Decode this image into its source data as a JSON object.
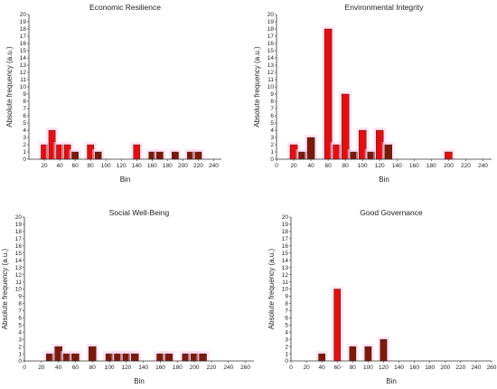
{
  "chart_data": [
    {
      "type": "bar",
      "title": "Economic Resilience",
      "xlabel": "Bin",
      "ylabel": "Absolute frequency (a.u.)",
      "xlim": [
        0,
        250
      ],
      "ylim": [
        0,
        20
      ],
      "xticks": [
        20,
        40,
        60,
        80,
        100,
        120,
        140,
        160,
        180,
        200,
        220,
        240
      ],
      "yticks": [
        0,
        1,
        2,
        3,
        4,
        5,
        6,
        7,
        8,
        9,
        10,
        11,
        12,
        13,
        14,
        15,
        16,
        17,
        18,
        19,
        20
      ],
      "bars": [
        {
          "x": 20,
          "value": 2,
          "color": "red"
        },
        {
          "x": 30,
          "value": 4,
          "color": "red"
        },
        {
          "x": 40,
          "value": 2,
          "color": "red"
        },
        {
          "x": 50,
          "value": 2,
          "color": "red"
        },
        {
          "x": 60,
          "value": 1,
          "color": "brown"
        },
        {
          "x": 80,
          "value": 2,
          "color": "red"
        },
        {
          "x": 90,
          "value": 1,
          "color": "brown"
        },
        {
          "x": 140,
          "value": 2,
          "color": "red"
        },
        {
          "x": 160,
          "value": 1,
          "color": "brown"
        },
        {
          "x": 170,
          "value": 1,
          "color": "brown"
        },
        {
          "x": 190,
          "value": 1,
          "color": "brown"
        },
        {
          "x": 210,
          "value": 1,
          "color": "brown"
        },
        {
          "x": 220,
          "value": 1,
          "color": "brown"
        }
      ]
    },
    {
      "type": "bar",
      "title": "Environmental Integrity",
      "xlabel": "Bin",
      "ylabel": "Absolute frequency (a.u.)",
      "xlim": [
        0,
        250
      ],
      "ylim": [
        0,
        20
      ],
      "xticks": [
        0,
        20,
        40,
        60,
        80,
        100,
        120,
        140,
        160,
        180,
        200,
        220,
        240
      ],
      "yticks": [
        0,
        1,
        2,
        3,
        4,
        5,
        6,
        7,
        8,
        9,
        10,
        11,
        12,
        13,
        14,
        15,
        16,
        17,
        18,
        19,
        20
      ],
      "bars": [
        {
          "x": 20,
          "value": 2,
          "color": "red"
        },
        {
          "x": 30,
          "value": 1,
          "color": "brown"
        },
        {
          "x": 40,
          "value": 3,
          "color": "brown"
        },
        {
          "x": 60,
          "value": 18,
          "color": "red"
        },
        {
          "x": 70,
          "value": 2,
          "color": "red"
        },
        {
          "x": 80,
          "value": 9,
          "color": "red"
        },
        {
          "x": 90,
          "value": 1,
          "color": "brown"
        },
        {
          "x": 100,
          "value": 4,
          "color": "red"
        },
        {
          "x": 110,
          "value": 1,
          "color": "brown"
        },
        {
          "x": 120,
          "value": 4,
          "color": "red"
        },
        {
          "x": 130,
          "value": 2,
          "color": "brown"
        },
        {
          "x": 200,
          "value": 1,
          "color": "red"
        }
      ]
    },
    {
      "type": "bar",
      "title": "Social Well-Being",
      "xlabel": "Bin",
      "ylabel": "Absolute frequency (a.u.)",
      "xlim": [
        0,
        270
      ],
      "ylim": [
        0,
        20
      ],
      "xticks": [
        0,
        20,
        40,
        60,
        80,
        100,
        120,
        140,
        160,
        180,
        200,
        220,
        240,
        260
      ],
      "yticks": [
        0,
        1,
        2,
        3,
        4,
        5,
        6,
        7,
        8,
        9,
        10,
        11,
        12,
        13,
        14,
        15,
        16,
        17,
        18,
        19,
        20
      ],
      "bars": [
        {
          "x": 30,
          "value": 1,
          "color": "brown"
        },
        {
          "x": 40,
          "value": 2,
          "color": "brown"
        },
        {
          "x": 50,
          "value": 1,
          "color": "brown"
        },
        {
          "x": 60,
          "value": 1,
          "color": "brown"
        },
        {
          "x": 80,
          "value": 2,
          "color": "brown"
        },
        {
          "x": 100,
          "value": 1,
          "color": "brown"
        },
        {
          "x": 110,
          "value": 1,
          "color": "brown"
        },
        {
          "x": 120,
          "value": 1,
          "color": "brown"
        },
        {
          "x": 130,
          "value": 1,
          "color": "brown"
        },
        {
          "x": 160,
          "value": 1,
          "color": "brown"
        },
        {
          "x": 170,
          "value": 1,
          "color": "brown"
        },
        {
          "x": 190,
          "value": 1,
          "color": "brown"
        },
        {
          "x": 200,
          "value": 1,
          "color": "brown"
        },
        {
          "x": 210,
          "value": 1,
          "color": "brown"
        }
      ]
    },
    {
      "type": "bar",
      "title": "Good Governance",
      "xlabel": "Bin",
      "ylabel": "Absolute frequency (a.u.)",
      "xlim": [
        0,
        260
      ],
      "ylim": [
        0,
        20
      ],
      "xticks": [
        0,
        20,
        40,
        60,
        80,
        100,
        120,
        140,
        160,
        180,
        200,
        220,
        240,
        260
      ],
      "yticks": [
        0,
        1,
        2,
        3,
        4,
        5,
        6,
        7,
        8,
        9,
        10,
        11,
        12,
        13,
        14,
        15,
        16,
        17,
        18,
        19,
        20
      ],
      "bars": [
        {
          "x": 40,
          "value": 1,
          "color": "brown"
        },
        {
          "x": 60,
          "value": 10,
          "color": "red"
        },
        {
          "x": 80,
          "value": 2,
          "color": "brown"
        },
        {
          "x": 100,
          "value": 2,
          "color": "brown"
        },
        {
          "x": 120,
          "value": 3,
          "color": "brown"
        }
      ]
    }
  ],
  "colors": {
    "red": "#e01010",
    "brown": "#7a1a0a",
    "axis": "#333333",
    "text": "#222222",
    "glow": "#ffd0f0"
  }
}
